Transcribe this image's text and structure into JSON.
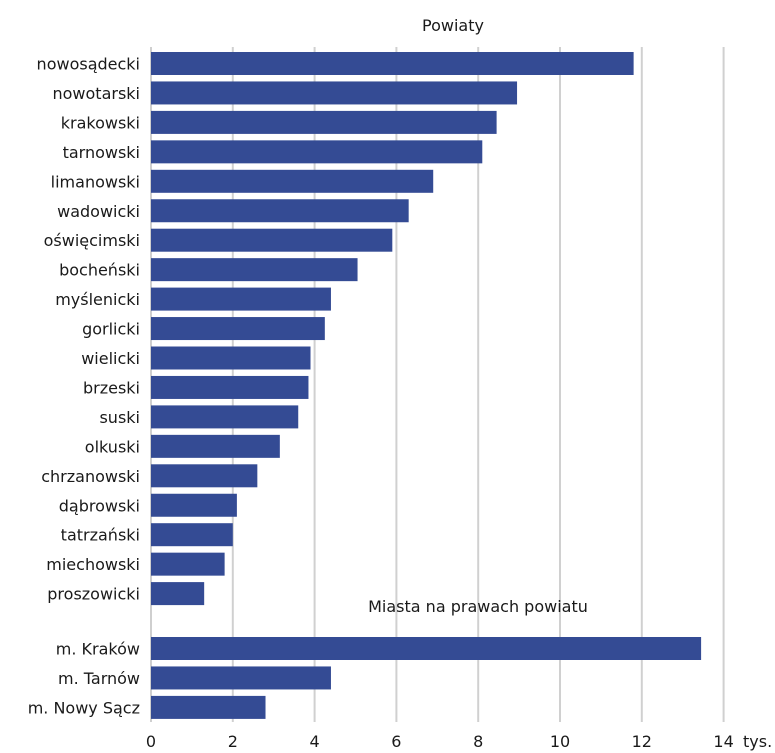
{
  "chart_data": {
    "type": "bar",
    "orientation": "horizontal",
    "bar_color": "#344b94",
    "x_unit": "tys.",
    "xlim": [
      0,
      14
    ],
    "xticks": [
      0,
      2,
      4,
      6,
      8,
      10,
      12,
      14
    ],
    "grid": true,
    "groups": [
      {
        "name": "Powiaty",
        "categories": [
          "nowosądecki",
          "nowotarski",
          "krakowski",
          "tarnowski",
          "limanowski",
          "wadowicki",
          "oświęcimski",
          "bocheński",
          "myślenicki",
          "gorlicki",
          "wielicki",
          "brzeski",
          "suski",
          "olkuski",
          "chrzanowski",
          "dąbrowski",
          "tatrzański",
          "miechowski",
          "proszowicki"
        ],
        "values": [
          11.8,
          8.95,
          8.45,
          8.1,
          6.9,
          6.3,
          5.9,
          5.05,
          4.4,
          4.25,
          3.9,
          3.85,
          3.6,
          3.15,
          2.6,
          2.1,
          2.0,
          1.8,
          1.3
        ]
      },
      {
        "name": "Miasta na prawach powiatu",
        "categories": [
          "m. Kraków",
          "m. Tarnów",
          "m. Nowy Sącz"
        ],
        "values": [
          13.45,
          4.4,
          2.8
        ]
      }
    ]
  }
}
